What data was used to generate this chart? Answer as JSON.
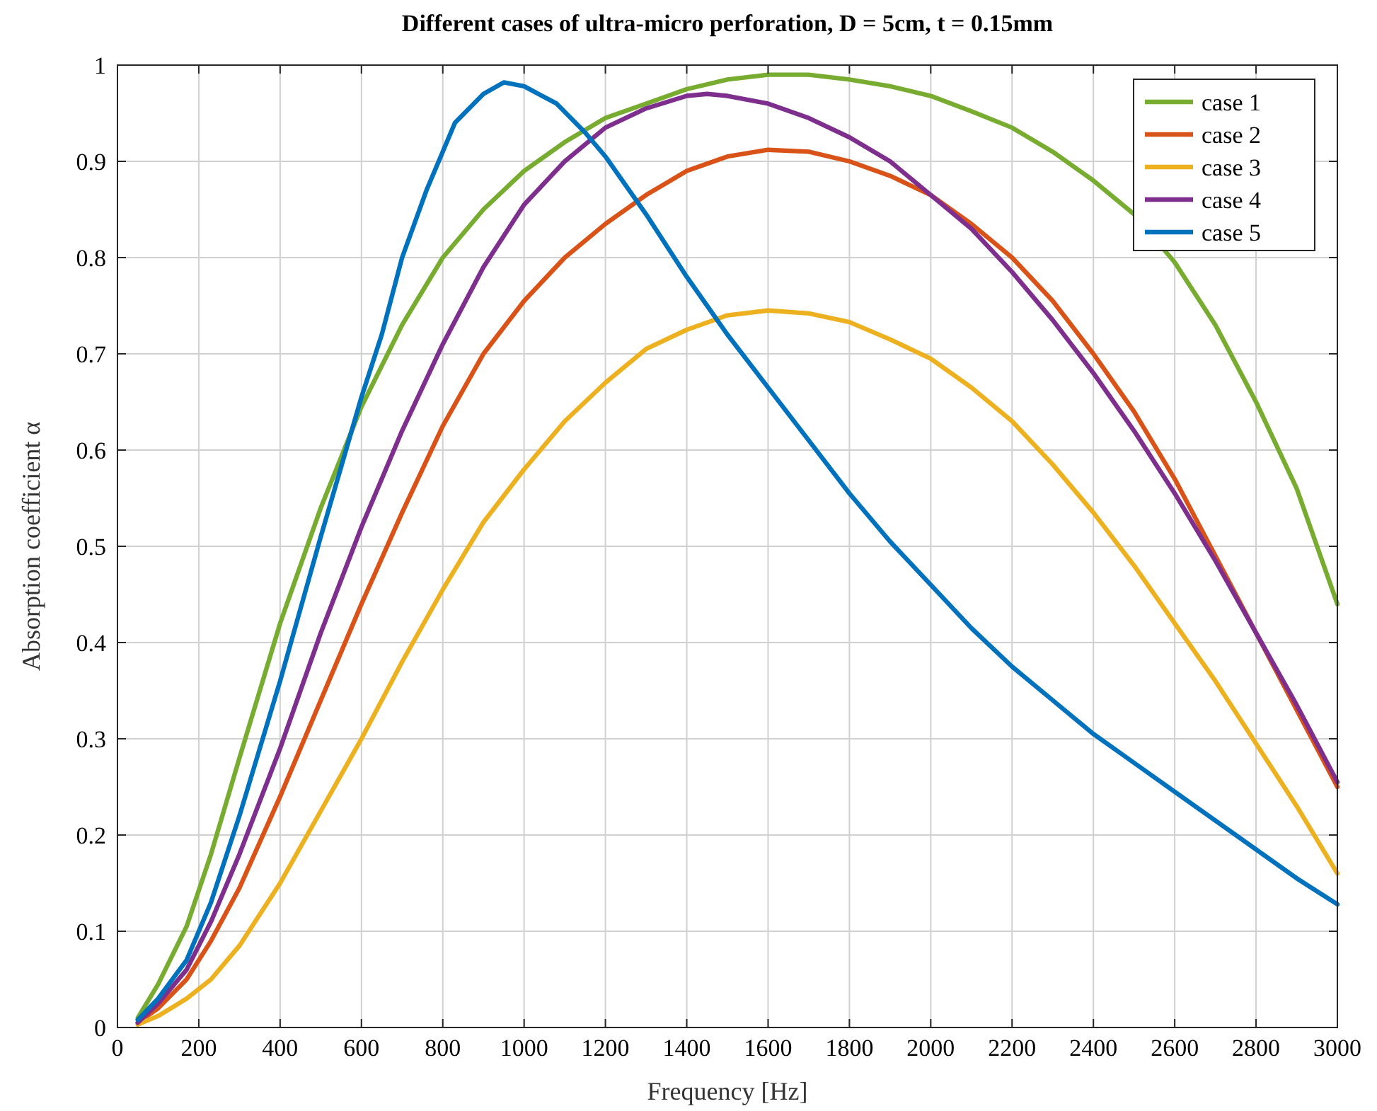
{
  "chart_data": {
    "type": "line",
    "title": "Different cases of ultra-micro perforation, D = 5cm, t = 0.15mm",
    "xlabel": "Frequency [Hz]",
    "ylabel": "Absorption coefficient α",
    "xlim": [
      0,
      3000
    ],
    "xticks": [
      0,
      200,
      400,
      600,
      800,
      1000,
      1200,
      1400,
      1600,
      1800,
      2000,
      2200,
      2400,
      2600,
      2800,
      3000
    ],
    "ylim": [
      0,
      1
    ],
    "yticks": [
      0,
      0.1,
      0.2,
      0.3,
      0.4,
      0.5,
      0.6,
      0.7,
      0.8,
      0.9,
      1
    ],
    "grid": true,
    "legend": "top right",
    "marker": "none",
    "line_style": "solid",
    "series": [
      {
        "name": "case 1",
        "color": "#77ac30",
        "x": [
          50,
          100,
          170,
          230,
          300,
          400,
          500,
          600,
          700,
          800,
          900,
          1000,
          1100,
          1200,
          1300,
          1400,
          1500,
          1600,
          1700,
          1800,
          1900,
          2000,
          2100,
          2200,
          2300,
          2400,
          2500,
          2600,
          2700,
          2800,
          2900,
          3000
        ],
        "values": [
          0.01,
          0.045,
          0.105,
          0.18,
          0.28,
          0.42,
          0.54,
          0.645,
          0.73,
          0.8,
          0.85,
          0.89,
          0.92,
          0.945,
          0.96,
          0.975,
          0.985,
          0.99,
          0.99,
          0.985,
          0.978,
          0.968,
          0.952,
          0.935,
          0.91,
          0.88,
          0.845,
          0.795,
          0.73,
          0.65,
          0.56,
          0.44
        ]
      },
      {
        "name": "case 2",
        "color": "#d95319",
        "x": [
          50,
          100,
          170,
          230,
          300,
          400,
          500,
          600,
          700,
          800,
          900,
          1000,
          1100,
          1200,
          1300,
          1400,
          1500,
          1600,
          1700,
          1800,
          1900,
          2000,
          2100,
          2200,
          2300,
          2400,
          2500,
          2600,
          2700,
          2800,
          2900,
          3000
        ],
        "values": [
          0.005,
          0.02,
          0.05,
          0.09,
          0.145,
          0.24,
          0.34,
          0.44,
          0.535,
          0.625,
          0.7,
          0.755,
          0.8,
          0.835,
          0.865,
          0.89,
          0.905,
          0.912,
          0.91,
          0.9,
          0.885,
          0.865,
          0.835,
          0.8,
          0.755,
          0.7,
          0.64,
          0.57,
          0.49,
          0.41,
          0.33,
          0.25
        ]
      },
      {
        "name": "case 3",
        "color": "#edb120",
        "x": [
          50,
          100,
          170,
          230,
          300,
          400,
          500,
          600,
          700,
          800,
          900,
          1000,
          1100,
          1200,
          1300,
          1400,
          1500,
          1600,
          1700,
          1800,
          1900,
          2000,
          2100,
          2200,
          2300,
          2400,
          2500,
          2600,
          2700,
          2800,
          2900,
          3000
        ],
        "values": [
          0.003,
          0.012,
          0.03,
          0.05,
          0.085,
          0.15,
          0.225,
          0.3,
          0.38,
          0.455,
          0.525,
          0.58,
          0.63,
          0.67,
          0.705,
          0.725,
          0.74,
          0.745,
          0.742,
          0.733,
          0.715,
          0.695,
          0.665,
          0.63,
          0.585,
          0.535,
          0.48,
          0.42,
          0.36,
          0.295,
          0.23,
          0.16
        ]
      },
      {
        "name": "case 4",
        "color": "#7e2f8e",
        "x": [
          50,
          100,
          170,
          230,
          300,
          400,
          500,
          600,
          700,
          800,
          900,
          1000,
          1100,
          1200,
          1300,
          1400,
          1450,
          1500,
          1600,
          1700,
          1800,
          1900,
          2000,
          2100,
          2200,
          2300,
          2400,
          2500,
          2600,
          2700,
          2800,
          2900,
          3000
        ],
        "values": [
          0.005,
          0.025,
          0.06,
          0.11,
          0.18,
          0.29,
          0.41,
          0.52,
          0.62,
          0.71,
          0.79,
          0.855,
          0.9,
          0.935,
          0.955,
          0.968,
          0.97,
          0.968,
          0.96,
          0.945,
          0.925,
          0.9,
          0.865,
          0.83,
          0.785,
          0.735,
          0.68,
          0.62,
          0.555,
          0.485,
          0.41,
          0.335,
          0.255
        ]
      },
      {
        "name": "case 5",
        "color": "#0072bd",
        "x": [
          50,
          100,
          170,
          230,
          300,
          400,
          500,
          600,
          650,
          700,
          760,
          830,
          900,
          950,
          1000,
          1080,
          1150,
          1200,
          1300,
          1400,
          1500,
          1600,
          1700,
          1800,
          1900,
          2000,
          2100,
          2200,
          2300,
          2400,
          2500,
          2600,
          2700,
          2800,
          2900,
          3000
        ],
        "values": [
          0.008,
          0.03,
          0.07,
          0.13,
          0.22,
          0.36,
          0.51,
          0.655,
          0.72,
          0.8,
          0.87,
          0.94,
          0.97,
          0.982,
          0.978,
          0.96,
          0.93,
          0.905,
          0.845,
          0.78,
          0.72,
          0.665,
          0.61,
          0.555,
          0.505,
          0.46,
          0.415,
          0.375,
          0.34,
          0.305,
          0.275,
          0.245,
          0.215,
          0.185,
          0.155,
          0.128
        ]
      }
    ]
  }
}
